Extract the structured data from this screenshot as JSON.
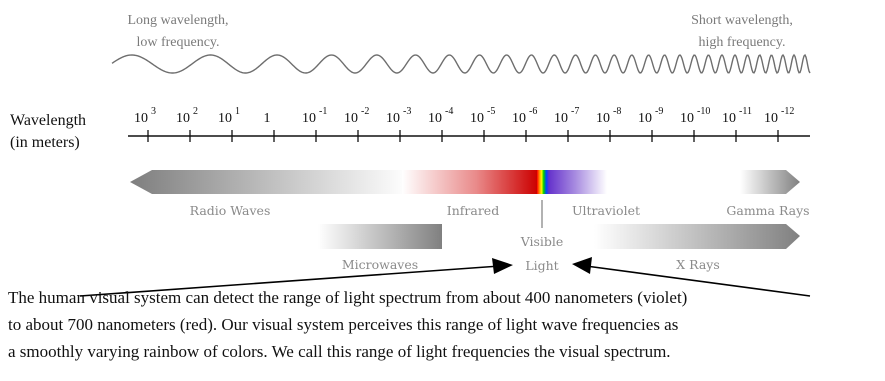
{
  "header": {
    "long_label_line1": "Long wavelength,",
    "long_label_line2": "low frequency.",
    "short_label_line1": "Short wavelength,",
    "short_label_line2": "high frequency."
  },
  "axis": {
    "label_line1": "Wavelength",
    "label_line2": "(in meters)",
    "ticks": [
      {
        "base": "10",
        "exp": "3"
      },
      {
        "base": "10",
        "exp": "2"
      },
      {
        "base": "10",
        "exp": "1"
      },
      {
        "base": "1",
        "exp": ""
      },
      {
        "base": "10",
        "exp": "-1"
      },
      {
        "base": "10",
        "exp": "-2"
      },
      {
        "base": "10",
        "exp": "-3"
      },
      {
        "base": "10",
        "exp": "-4"
      },
      {
        "base": "10",
        "exp": "-5"
      },
      {
        "base": "10",
        "exp": "-6"
      },
      {
        "base": "10",
        "exp": "-7"
      },
      {
        "base": "10",
        "exp": "-8"
      },
      {
        "base": "10",
        "exp": "-9"
      },
      {
        "base": "10",
        "exp": "-10"
      },
      {
        "base": "10",
        "exp": "-11"
      },
      {
        "base": "10",
        "exp": "-12"
      }
    ]
  },
  "bands": {
    "radio": "Radio Waves",
    "microwaves": "Microwaves",
    "infrared": "Infrared",
    "visible_line1": "Visible",
    "visible_line2": "Light",
    "ultraviolet": "Ultraviolet",
    "xrays": "X Rays",
    "gamma": "Gamma Rays"
  },
  "caption": {
    "line1": "The human visual system can detect the range of light spectrum from about 400 nanometers (violet)",
    "line2": "to about 700 nanometers (red). Our visual system perceives this range of light wave frequencies as",
    "line3": "a smoothly varying rainbow of colors. We call this range of light frequencies the visual spectrum."
  },
  "colors": {
    "text": "#111111",
    "grey_label": "#8a8a8a",
    "band_dark": "#808080",
    "red": "#cc0000",
    "violet": "#6633cc"
  }
}
